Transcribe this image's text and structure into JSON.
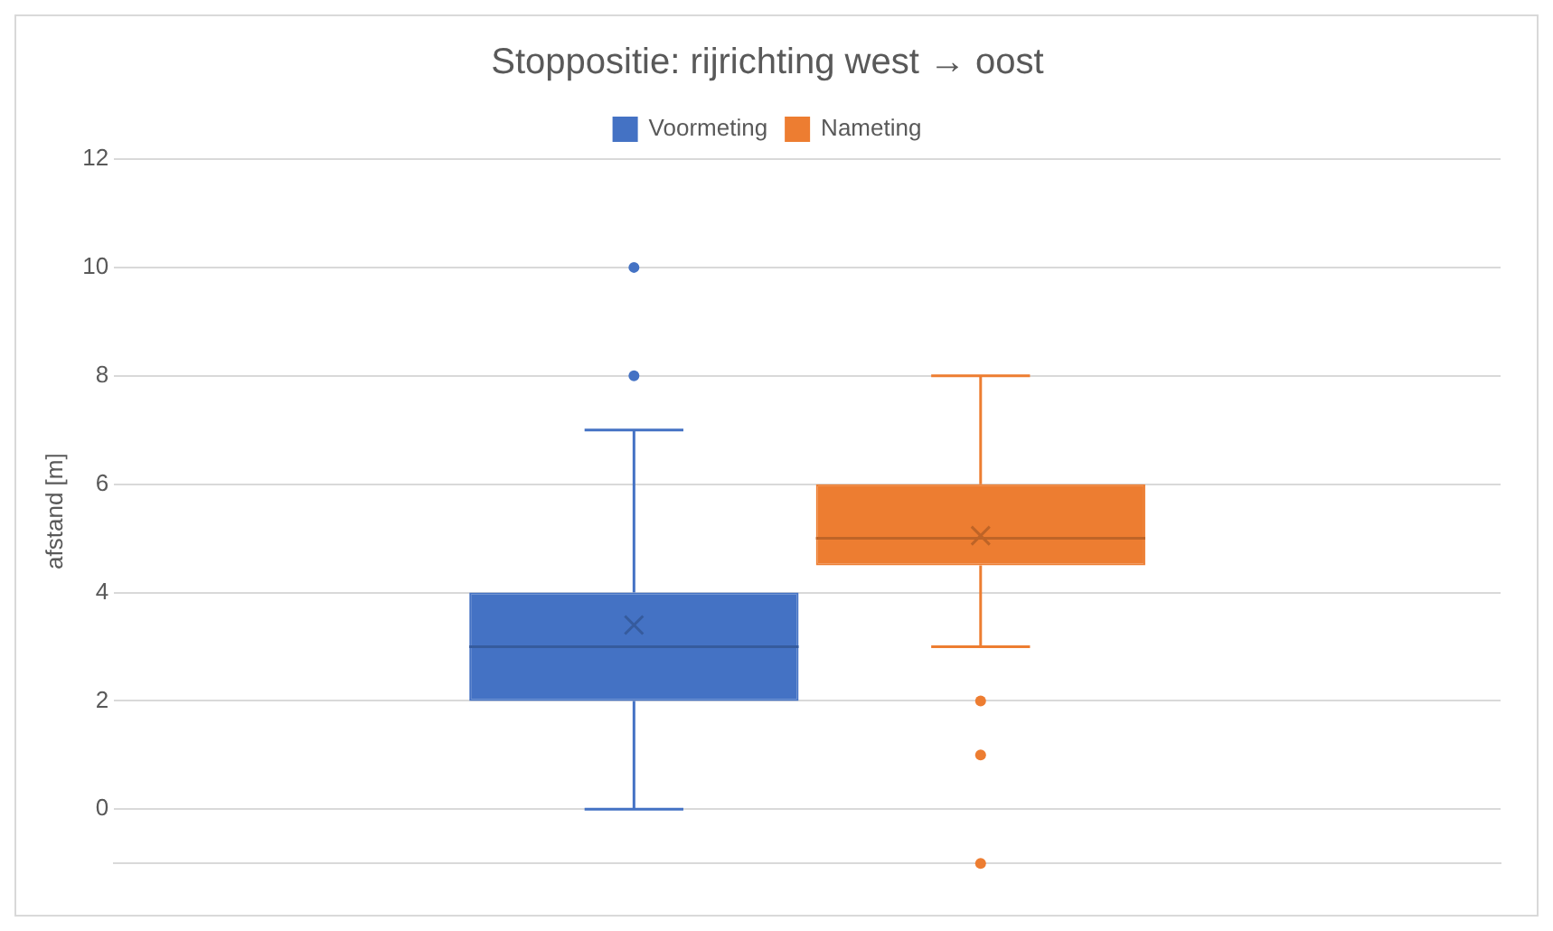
{
  "chart_data": {
    "type": "box",
    "title": "Stoppositie: rijrichting west → oost",
    "ylabel": "afstand [m]",
    "categories": [
      null
    ],
    "series": [
      {
        "name": "Voormeting",
        "color": "#4472c4",
        "boxes": [
          {
            "low": 0,
            "q1": 2,
            "median": 3,
            "q3": 4,
            "high": 7,
            "mean": 3.4,
            "outliers": [
              8,
              10
            ]
          }
        ]
      },
      {
        "name": "Nameting",
        "color": "#ed7d31",
        "boxes": [
          {
            "low": 3,
            "q1": 4.5,
            "median": 5,
            "q3": 6,
            "high": 8,
            "mean": 5.05,
            "outliers": [
              2,
              1,
              -1
            ]
          }
        ]
      }
    ],
    "ylim": [
      -1,
      12
    ],
    "yticks": [
      0,
      2,
      4,
      6,
      8,
      10,
      12
    ],
    "grid": "y",
    "legend": "top"
  }
}
